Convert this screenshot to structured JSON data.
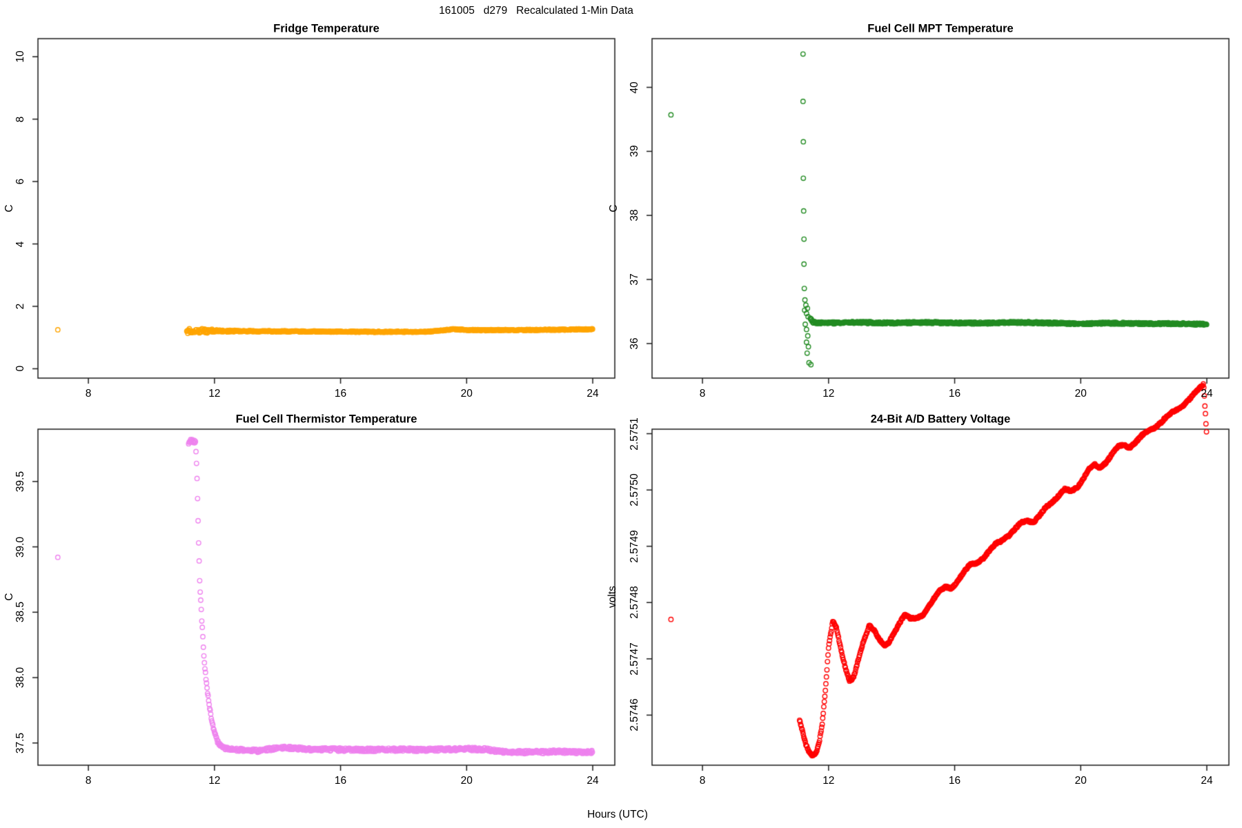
{
  "figure": {
    "title": "161005   d279   Recalculated 1-Min Data",
    "xlabel": "Hours (UTC)",
    "background": "#FFFFFF",
    "frame_color": "#1a1a1a",
    "text_color": "#000000"
  },
  "chart_data": [
    {
      "type": "scatter",
      "panel": "top-left",
      "title": "Fridge Temperature",
      "ylabel": "C",
      "marker": "open-circle",
      "color": "#FFA500",
      "xlim": [
        6.4,
        24.7
      ],
      "ylim": [
        -0.3,
        10.58
      ],
      "xticks": [
        8,
        12,
        16,
        20,
        24
      ],
      "xtick_labels": [
        "8",
        "12",
        "16",
        "20",
        "24"
      ],
      "yticks": [
        0,
        2,
        4,
        6,
        8,
        10
      ],
      "ytick_labels": [
        "0",
        "2",
        "4",
        "6",
        "8",
        "10"
      ],
      "sample_interval_hours": 0.0167,
      "isolated_point": [
        7.03,
        1.25
      ],
      "outlier_points": [],
      "series_anchors": [
        [
          11.12,
          1.22
        ],
        [
          11.6,
          1.215
        ],
        [
          12.0,
          1.21
        ],
        [
          13.0,
          1.205
        ],
        [
          14.0,
          1.2
        ],
        [
          15.0,
          1.195
        ],
        [
          16.0,
          1.19
        ],
        [
          17.0,
          1.185
        ],
        [
          18.0,
          1.185
        ],
        [
          18.8,
          1.19
        ],
        [
          19.3,
          1.24
        ],
        [
          19.6,
          1.27
        ],
        [
          20.0,
          1.24
        ],
        [
          20.5,
          1.235
        ],
        [
          21.0,
          1.24
        ],
        [
          22.0,
          1.245
        ],
        [
          23.0,
          1.25
        ],
        [
          24.0,
          1.27
        ]
      ],
      "noise_amplitude": 0.018,
      "start_band": {
        "from": 11.12,
        "until": 13.0,
        "amplitude": 0.08
      }
    },
    {
      "type": "scatter",
      "panel": "top-right",
      "title": "Fuel Cell MPT Temperature",
      "ylabel": "C",
      "marker": "open-circle",
      "color": "#228B22",
      "xlim": [
        6.4,
        24.7
      ],
      "ylim": [
        35.46,
        40.76
      ],
      "xticks": [
        8,
        12,
        16,
        20,
        24
      ],
      "xtick_labels": [
        "8",
        "12",
        "16",
        "20",
        "24"
      ],
      "yticks": [
        36,
        37,
        38,
        39,
        40
      ],
      "ytick_labels": [
        "36",
        "37",
        "38",
        "39",
        "40"
      ],
      "sample_interval_hours": 0.0167,
      "isolated_point": [
        7.0,
        39.57
      ],
      "outlier_points": [
        [
          11.19,
          40.52
        ],
        [
          11.19,
          39.78
        ],
        [
          11.2,
          39.15
        ],
        [
          11.2,
          38.58
        ],
        [
          11.21,
          38.07
        ],
        [
          11.22,
          37.63
        ],
        [
          11.22,
          37.24
        ],
        [
          11.23,
          36.86
        ],
        [
          11.25,
          36.68
        ],
        [
          11.28,
          36.6
        ],
        [
          11.24,
          36.52
        ],
        [
          11.3,
          36.47
        ],
        [
          11.33,
          36.55
        ],
        [
          11.35,
          36.42
        ],
        [
          11.26,
          36.3
        ],
        [
          11.3,
          36.22
        ],
        [
          11.34,
          36.12
        ],
        [
          11.3,
          36.02
        ],
        [
          11.36,
          35.95
        ],
        [
          11.32,
          35.85
        ],
        [
          11.38,
          35.7
        ],
        [
          11.44,
          35.67
        ]
      ],
      "series_anchors": [
        [
          11.42,
          36.4
        ],
        [
          11.5,
          36.33
        ],
        [
          12.0,
          36.32
        ],
        [
          13.0,
          36.33
        ],
        [
          14.0,
          36.32
        ],
        [
          15.0,
          36.33
        ],
        [
          16.0,
          36.32
        ],
        [
          17.0,
          36.32
        ],
        [
          18.0,
          36.33
        ],
        [
          19.0,
          36.32
        ],
        [
          20.0,
          36.31
        ],
        [
          21.0,
          36.32
        ],
        [
          22.0,
          36.31
        ],
        [
          23.0,
          36.31
        ],
        [
          24.0,
          36.3
        ]
      ],
      "noise_amplitude": 0.015,
      "start_band": null
    },
    {
      "type": "scatter",
      "panel": "bottom-left",
      "title": "Fuel Cell Thermistor Temperature",
      "ylabel": "C",
      "marker": "open-circle",
      "color": "#EE82EE",
      "xlim": [
        6.4,
        24.7
      ],
      "ylim": [
        37.33,
        39.9
      ],
      "xticks": [
        8,
        12,
        16,
        20,
        24
      ],
      "xtick_labels": [
        "8",
        "12",
        "16",
        "20",
        "24"
      ],
      "yticks": [
        37.5,
        38.0,
        38.5,
        39.0,
        39.5
      ],
      "ytick_labels": [
        "37.5",
        "38.0",
        "38.5",
        "39.0",
        "39.5"
      ],
      "sample_interval_hours": 0.0167,
      "isolated_point": [
        7.03,
        38.92
      ],
      "outlier_points": [],
      "series_anchors": [
        [
          11.18,
          39.8
        ],
        [
          11.3,
          39.82
        ],
        [
          11.4,
          39.8
        ],
        [
          11.44,
          39.6
        ],
        [
          11.47,
          39.3
        ],
        [
          11.5,
          39.0
        ],
        [
          11.53,
          38.75
        ],
        [
          11.56,
          38.6
        ],
        [
          11.59,
          38.47
        ],
        [
          11.62,
          38.35
        ],
        [
          11.65,
          38.22
        ],
        [
          11.68,
          38.12
        ],
        [
          11.72,
          38.02
        ],
        [
          11.76,
          37.93
        ],
        [
          11.8,
          37.85
        ],
        [
          11.84,
          37.78
        ],
        [
          11.88,
          37.72
        ],
        [
          11.92,
          37.67
        ],
        [
          11.96,
          37.62
        ],
        [
          12.0,
          37.58
        ],
        [
          12.05,
          37.54
        ],
        [
          12.1,
          37.51
        ],
        [
          12.2,
          37.48
        ],
        [
          12.35,
          37.46
        ],
        [
          12.6,
          37.45
        ],
        [
          13.0,
          37.445
        ],
        [
          13.4,
          37.44
        ],
        [
          13.8,
          37.455
        ],
        [
          14.2,
          37.465
        ],
        [
          14.6,
          37.46
        ],
        [
          15.0,
          37.45
        ],
        [
          15.5,
          37.45
        ],
        [
          16.0,
          37.45
        ],
        [
          16.5,
          37.448
        ],
        [
          17.0,
          37.448
        ],
        [
          17.5,
          37.45
        ],
        [
          18.0,
          37.45
        ],
        [
          18.5,
          37.448
        ],
        [
          19.0,
          37.45
        ],
        [
          19.5,
          37.452
        ],
        [
          20.0,
          37.455
        ],
        [
          20.6,
          37.45
        ],
        [
          21.0,
          37.435
        ],
        [
          21.5,
          37.43
        ],
        [
          22.0,
          37.43
        ],
        [
          22.5,
          37.432
        ],
        [
          23.0,
          37.435
        ],
        [
          23.5,
          37.43
        ],
        [
          24.0,
          37.432
        ]
      ],
      "noise_amplitude": 0.012,
      "start_band": {
        "from": 11.18,
        "until": 11.42,
        "amplitude": 0.02
      }
    },
    {
      "type": "scatter",
      "panel": "bottom-right",
      "title": "24-Bit A/D Battery Voltage",
      "ylabel": "volts",
      "marker": "open-circle",
      "color": "#FF0000",
      "xlim": [
        6.4,
        24.7
      ],
      "ylim": [
        2.574511,
        2.575108
      ],
      "xticks": [
        8,
        12,
        16,
        20,
        24
      ],
      "xtick_labels": [
        "8",
        "12",
        "16",
        "20",
        "24"
      ],
      "yticks": [
        2.5746,
        2.5747,
        2.5748,
        2.5749,
        2.575,
        2.5751
      ],
      "ytick_labels": [
        "2.5746",
        "2.5747",
        "2.5748",
        "2.5749",
        "2.5750",
        "2.5751"
      ],
      "sample_interval_hours": 0.0167,
      "isolated_point": [
        7.0,
        2.57477
      ],
      "outlier_points": [],
      "series_anchors": [
        [
          11.08,
          2.574592
        ],
        [
          11.18,
          2.57457
        ],
        [
          11.28,
          2.574548
        ],
        [
          11.38,
          2.574535
        ],
        [
          11.5,
          2.574528
        ],
        [
          11.6,
          2.574532
        ],
        [
          11.7,
          2.57455
        ],
        [
          11.8,
          2.574585
        ],
        [
          11.9,
          2.574645
        ],
        [
          12.0,
          2.57472
        ],
        [
          12.13,
          2.574767
        ],
        [
          12.25,
          2.574755
        ],
        [
          12.4,
          2.574715
        ],
        [
          12.55,
          2.57468
        ],
        [
          12.67,
          2.57466
        ],
        [
          12.8,
          2.574668
        ],
        [
          12.95,
          2.5747
        ],
        [
          13.1,
          2.57473
        ],
        [
          13.3,
          2.57476
        ],
        [
          13.45,
          2.57475
        ],
        [
          13.6,
          2.574735
        ],
        [
          13.77,
          2.574724
        ],
        [
          13.9,
          2.574728
        ],
        [
          14.1,
          2.574748
        ],
        [
          14.3,
          2.574768
        ],
        [
          14.42,
          2.574778
        ],
        [
          14.6,
          2.574772
        ],
        [
          14.8,
          2.574772
        ],
        [
          15.0,
          2.574778
        ],
        [
          15.2,
          2.574795
        ],
        [
          15.5,
          2.57482
        ],
        [
          15.7,
          2.574828
        ],
        [
          15.9,
          2.574825
        ],
        [
          16.1,
          2.574838
        ],
        [
          16.3,
          2.574855
        ],
        [
          16.5,
          2.574868
        ],
        [
          16.7,
          2.57487
        ],
        [
          16.9,
          2.574878
        ],
        [
          17.1,
          2.574892
        ],
        [
          17.3,
          2.574905
        ],
        [
          17.5,
          2.57491
        ],
        [
          17.7,
          2.574918
        ],
        [
          17.9,
          2.57493
        ],
        [
          18.1,
          2.574942
        ],
        [
          18.3,
          2.574945
        ],
        [
          18.5,
          2.574942
        ],
        [
          18.7,
          2.574955
        ],
        [
          18.9,
          2.57497
        ],
        [
          19.1,
          2.574978
        ],
        [
          19.3,
          2.57499
        ],
        [
          19.5,
          2.575002
        ],
        [
          19.7,
          2.574998
        ],
        [
          19.9,
          2.575005
        ],
        [
          20.1,
          2.575022
        ],
        [
          20.3,
          2.57504
        ],
        [
          20.45,
          2.575045
        ],
        [
          20.6,
          2.57504
        ],
        [
          20.8,
          2.575048
        ],
        [
          21.0,
          2.575065
        ],
        [
          21.2,
          2.575078
        ],
        [
          21.35,
          2.57508
        ],
        [
          21.55,
          2.575075
        ],
        [
          21.75,
          2.575085
        ],
        [
          21.95,
          2.575098
        ],
        [
          22.15,
          2.575105
        ],
        [
          22.35,
          2.57511
        ],
        [
          22.55,
          2.57512
        ],
        [
          22.75,
          2.575132
        ],
        [
          22.95,
          2.57514
        ],
        [
          23.15,
          2.575145
        ],
        [
          23.35,
          2.575155
        ],
        [
          23.55,
          2.575168
        ],
        [
          23.75,
          2.57518
        ],
        [
          23.9,
          2.575188
        ],
        [
          24.0,
          2.575092
        ]
      ],
      "noise_amplitude": 1.5e-06,
      "start_band": null
    }
  ]
}
